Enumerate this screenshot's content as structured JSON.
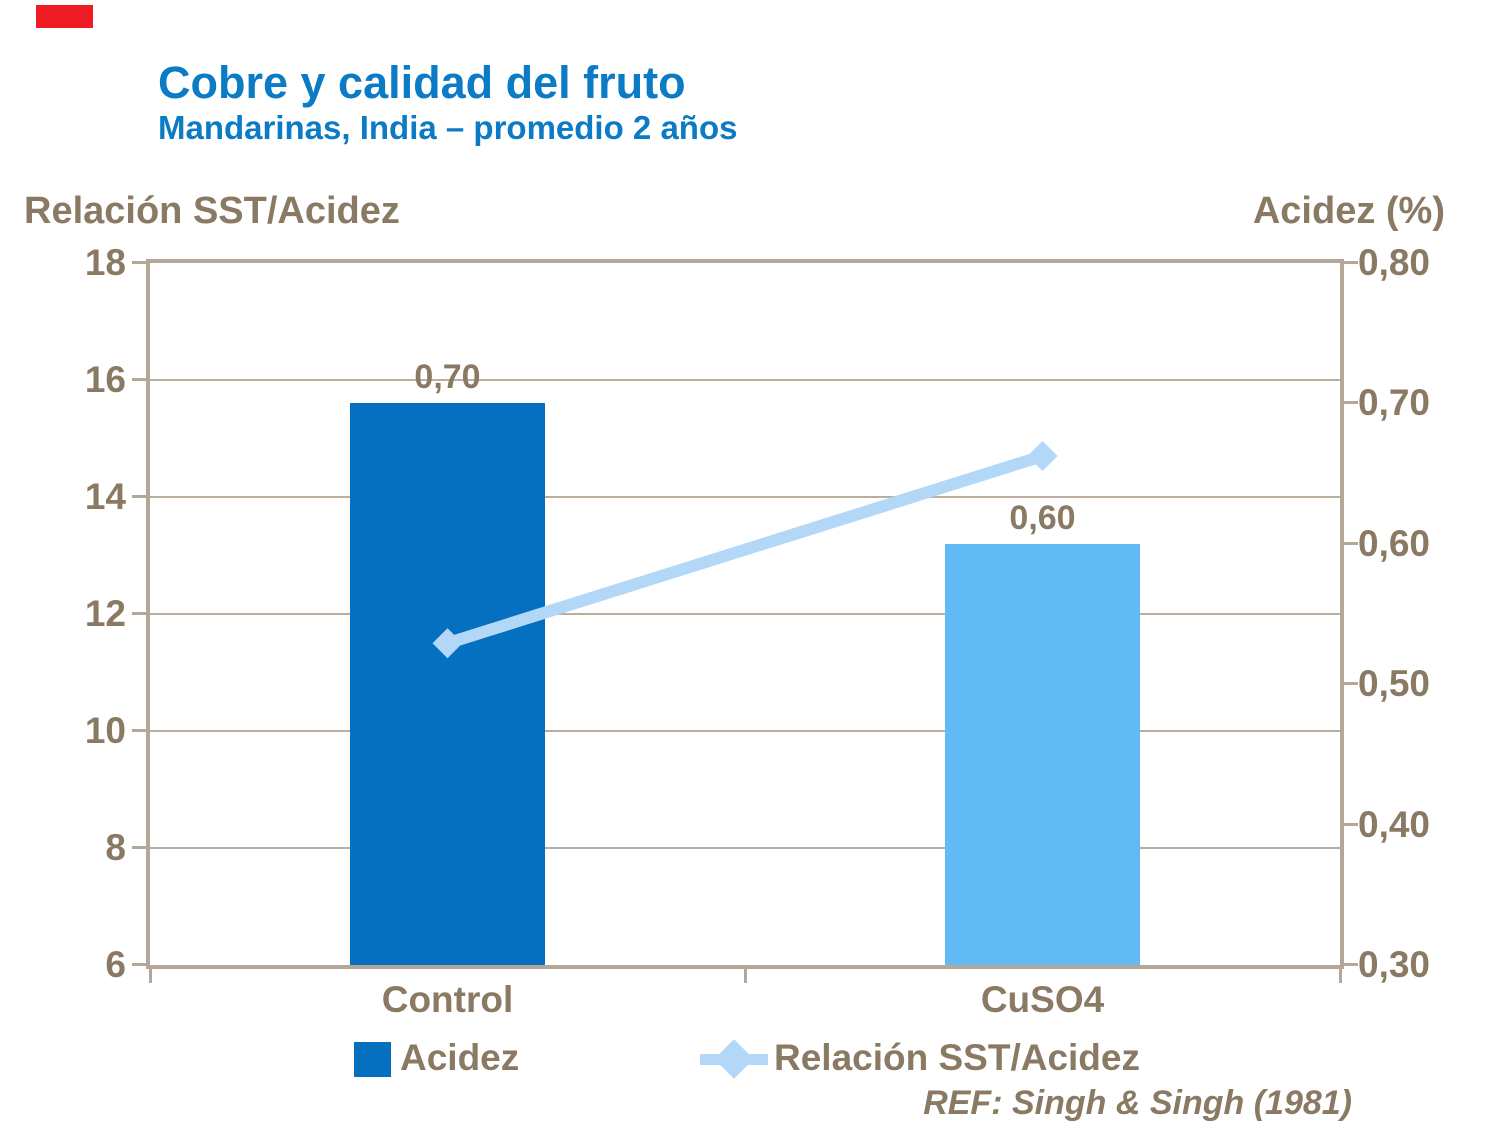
{
  "slide": {
    "title": "Cobre y calidad del fruto",
    "subtitle": "Mandarinas, India – promedio 2 años",
    "ref_note": "REF: Singh & Singh (1981)"
  },
  "colors": {
    "accent_red": "#ee1c25",
    "title_blue": "#0b7bc6",
    "text_brown": "#8a7a64",
    "frame_tan": "#b5a797",
    "bar_dark_blue": "#0570c0",
    "bar_light_blue": "#61baf3",
    "line_pale_blue": "#b3d7f7"
  },
  "left_axis": {
    "title": "Relación SST/Acidez",
    "tick_labels": [
      "18",
      "16",
      "14",
      "12",
      "10",
      "8",
      "6"
    ],
    "min": 6,
    "max": 18
  },
  "right_axis": {
    "title": "Acidez (%)",
    "tick_labels": [
      "0,80",
      "0,70",
      "0,60",
      "0,50",
      "0,40",
      "0,30"
    ],
    "min": 0.3,
    "max": 0.8
  },
  "chart_data": {
    "type": "combo-bar-line",
    "categories": [
      "Control",
      "CuSO4"
    ],
    "series": [
      {
        "name": "Acidez",
        "type": "bar",
        "axis": "right",
        "values": [
          0.7,
          0.6
        ],
        "data_labels": [
          "0,70",
          "0,60"
        ],
        "colors": [
          "#0570c0",
          "#61baf3"
        ]
      },
      {
        "name": "Relación SST/Acidez",
        "type": "line",
        "axis": "left",
        "values": [
          11.5,
          14.7
        ],
        "color": "#b3d7f7",
        "marker": "diamond"
      }
    ],
    "left_ylim": [
      6,
      18
    ],
    "right_ylim": [
      0.3,
      0.8
    ],
    "grid": "horizontal gridlines at left-axis ticks 16,14,12,10,8",
    "legend_position": "bottom"
  },
  "legend": {
    "items": [
      {
        "label": "Acidez",
        "marker": "square"
      },
      {
        "label": "Relación SST/Acidez",
        "marker": "line-diamond"
      }
    ]
  }
}
